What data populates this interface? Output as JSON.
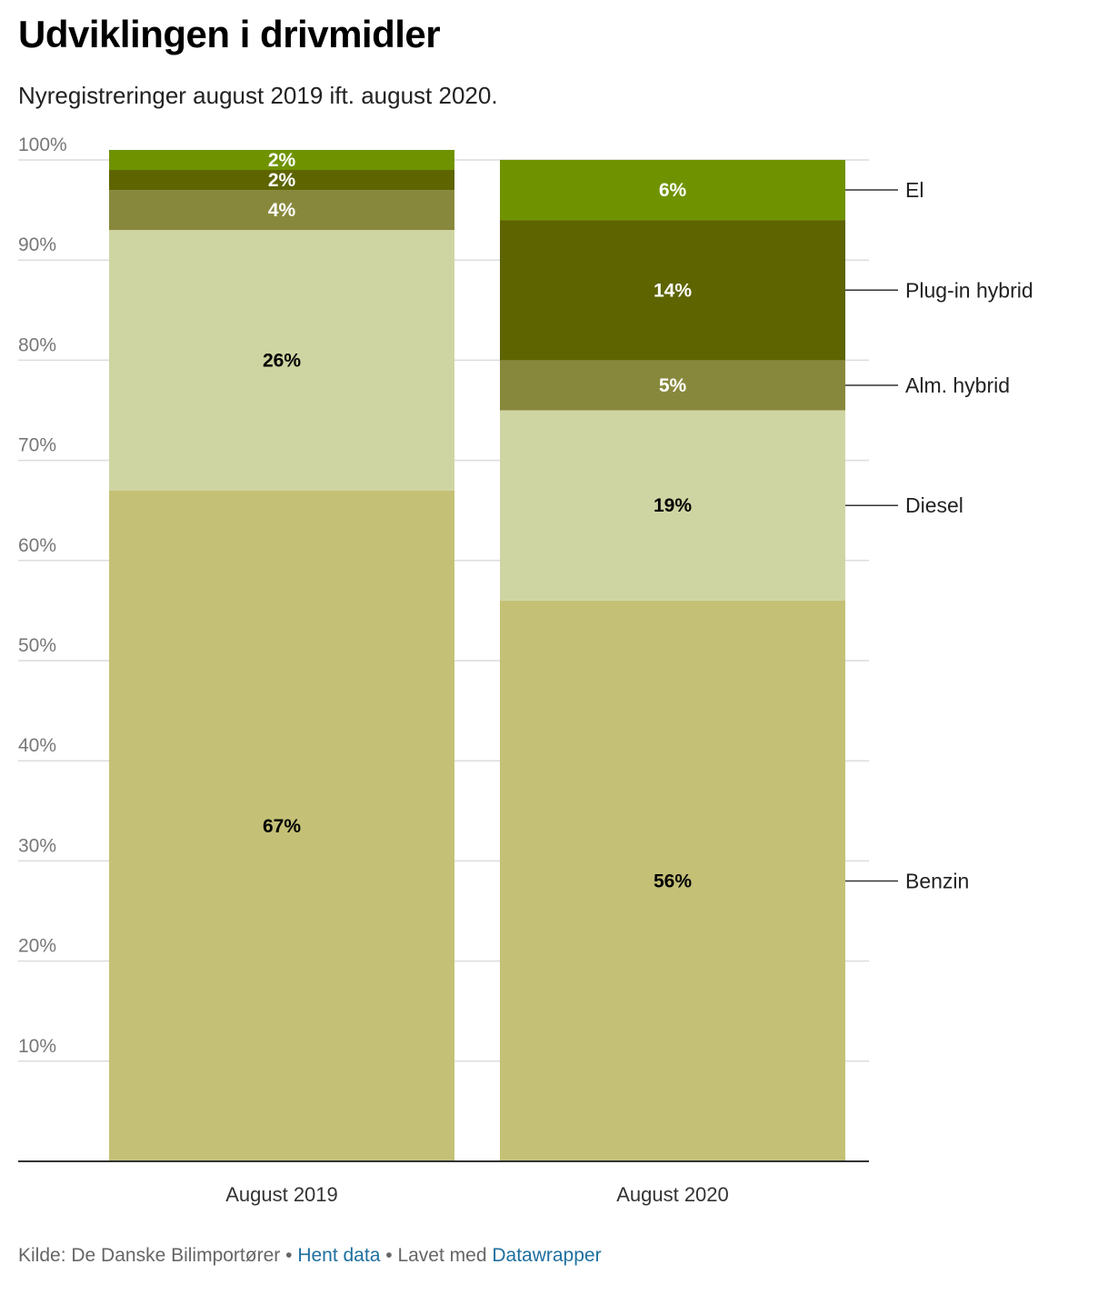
{
  "header": {
    "title": "Udviklingen i drivmidler",
    "subtitle": "Nyregistreringer august 2019 ift. august 2020."
  },
  "chart_data": {
    "type": "bar",
    "stacked": true,
    "categories": [
      "August 2019",
      "August 2020"
    ],
    "series": [
      {
        "name": "Benzin",
        "values": [
          67,
          56
        ],
        "labels": [
          "67%",
          "56%"
        ],
        "color": "#c4c177",
        "label_color": "#000000"
      },
      {
        "name": "Diesel",
        "values": [
          26,
          19
        ],
        "labels": [
          "26%",
          "19%"
        ],
        "color": "#cfd5a2",
        "label_color": "#000000"
      },
      {
        "name": "Alm. hybrid",
        "values": [
          4,
          5
        ],
        "labels": [
          "4%",
          "5%"
        ],
        "color": "#88883d",
        "label_color": "#ffffff"
      },
      {
        "name": "Plug-in hybrid",
        "values": [
          2,
          14
        ],
        "labels": [
          "2%",
          "14%"
        ],
        "color": "#5d6400",
        "label_color": "#ffffff"
      },
      {
        "name": "El",
        "values": [
          2,
          6
        ],
        "labels": [
          "2%",
          "6%"
        ],
        "color": "#6f9300",
        "label_color": "#ffffff"
      }
    ],
    "y_ticks": [
      "10%",
      "20%",
      "30%",
      "40%",
      "50%",
      "60%",
      "70%",
      "80%",
      "90%",
      "100%"
    ],
    "ylim": [
      0,
      100
    ],
    "grid": true,
    "legend": "right, labelled at the August 2020 bar"
  },
  "footer": {
    "source_label": "Kilde: De Danske Bilimportører",
    "separator": "•",
    "get_data_link": "Hent data",
    "made_with_label": "Lavet med",
    "datawrapper_link": "Datawrapper"
  }
}
